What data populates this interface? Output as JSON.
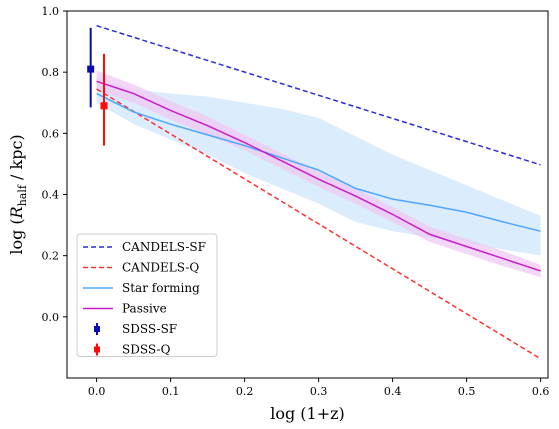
{
  "chart_data": {
    "type": "line",
    "xlabel": "log (1+z)",
    "ylabel": {
      "prefix": "log (",
      "var": "R",
      "sub": "half",
      "suffix": " / kpc)"
    },
    "xlim": [
      -0.04,
      0.61
    ],
    "ylim": [
      -0.2,
      1.0
    ],
    "xticks": [
      0.0,
      0.1,
      0.2,
      0.3,
      0.4,
      0.5,
      0.6
    ],
    "xtick_labels": [
      "0.0",
      "0.1",
      "0.2",
      "0.3",
      "0.4",
      "0.5",
      "0.6"
    ],
    "yticks": [
      0.0,
      0.2,
      0.4,
      0.6,
      0.8,
      1.0
    ],
    "ytick_labels": [
      "0.0",
      "0.2",
      "0.4",
      "0.6",
      "0.8",
      "1.0"
    ],
    "grid": false,
    "legend_position": "lower-left",
    "series": [
      {
        "name": "CANDELS-SF",
        "style": "dashed",
        "color": "#2a2ad8",
        "x": [
          0.0,
          0.6
        ],
        "y": [
          0.952,
          0.497
        ]
      },
      {
        "name": "CANDELS-Q",
        "style": "dashed",
        "color": "#ff3030",
        "x": [
          0.0,
          0.6
        ],
        "y": [
          0.745,
          -0.137
        ]
      },
      {
        "name": "Star forming",
        "style": "solid",
        "color": "#4da6ff",
        "band_color": "#cfe6fb",
        "x": [
          0.0,
          0.05,
          0.1,
          0.15,
          0.2,
          0.25,
          0.3,
          0.35,
          0.4,
          0.45,
          0.5,
          0.55,
          0.6
        ],
        "y": [
          0.73,
          0.67,
          0.63,
          0.595,
          0.56,
          0.52,
          0.48,
          0.42,
          0.385,
          0.365,
          0.342,
          0.31,
          0.28
        ],
        "y_low": [
          0.7,
          0.63,
          0.58,
          0.53,
          0.47,
          0.42,
          0.37,
          0.31,
          0.28,
          0.26,
          0.24,
          0.22,
          0.2
        ],
        "y_high": [
          0.78,
          0.745,
          0.73,
          0.72,
          0.7,
          0.68,
          0.65,
          0.59,
          0.53,
          0.48,
          0.43,
          0.38,
          0.33
        ]
      },
      {
        "name": "Passive",
        "style": "solid",
        "color": "#c81ec8",
        "band_color": "#eec9f3",
        "x": [
          0.0,
          0.05,
          0.1,
          0.15,
          0.2,
          0.25,
          0.3,
          0.35,
          0.4,
          0.45,
          0.5,
          0.55,
          0.6
        ],
        "y": [
          0.77,
          0.73,
          0.675,
          0.625,
          0.57,
          0.51,
          0.45,
          0.395,
          0.335,
          0.27,
          0.23,
          0.19,
          0.15
        ],
        "y_low": [
          0.74,
          0.7,
          0.645,
          0.595,
          0.545,
          0.485,
          0.425,
          0.37,
          0.31,
          0.245,
          0.205,
          0.165,
          0.13
        ],
        "y_high": [
          0.805,
          0.76,
          0.705,
          0.655,
          0.595,
          0.535,
          0.475,
          0.42,
          0.36,
          0.295,
          0.255,
          0.215,
          0.17
        ]
      },
      {
        "name": "SDSS-SF",
        "type": "errorbar",
        "color": "#0a0ab4",
        "x": -0.008,
        "y": 0.81,
        "y_low": 0.685,
        "y_high": 0.945
      },
      {
        "name": "SDSS-Q",
        "type": "errorbar",
        "color": "#ff0a0a",
        "x": 0.01,
        "y": 0.69,
        "y_low": 0.56,
        "y_high": 0.86
      }
    ]
  }
}
